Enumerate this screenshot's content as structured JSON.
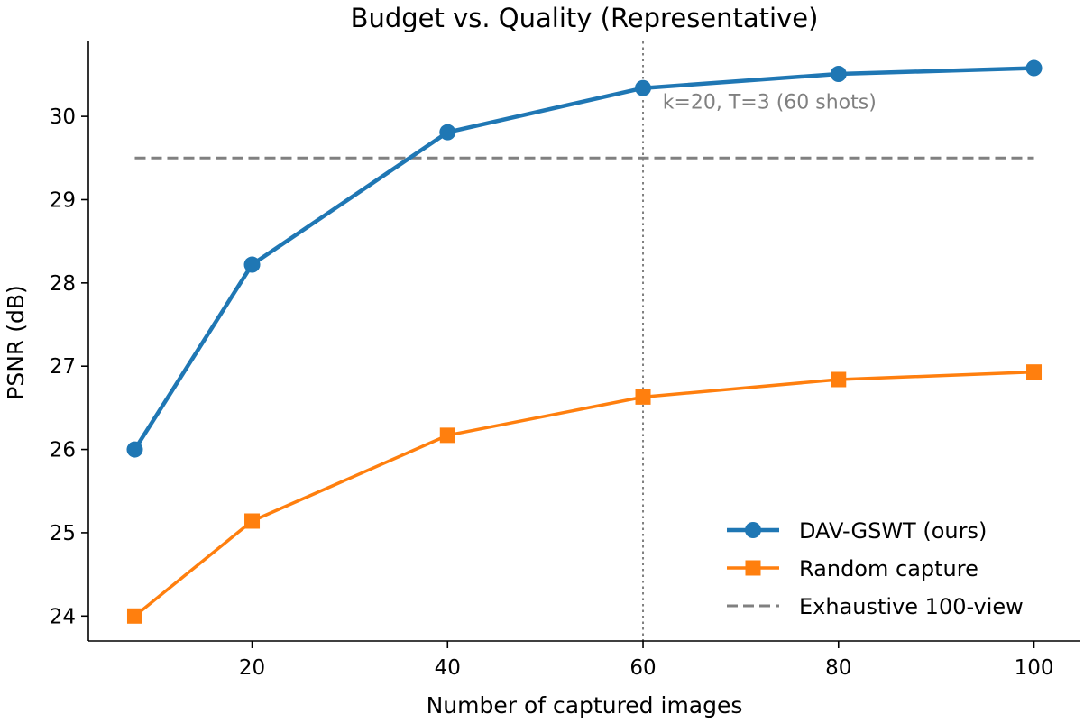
{
  "chart_data": {
    "type": "line",
    "title": "Budget vs. Quality (Representative)",
    "xlabel": "Number of captured images",
    "ylabel": "PSNR (dB)",
    "xlim": [
      3.25,
      104.75
    ],
    "ylim": [
      23.7,
      30.9
    ],
    "xticks": [
      20,
      40,
      60,
      80,
      100
    ],
    "yticks": [
      24,
      25,
      26,
      27,
      28,
      29,
      30
    ],
    "grid": false,
    "legend_position": "bottom-right",
    "x": [
      8,
      20,
      40,
      60,
      80,
      100
    ],
    "series": [
      {
        "name": "DAV-GSWT (ours)",
        "values": [
          26.0,
          28.22,
          29.81,
          30.34,
          30.51,
          30.58
        ],
        "color": "#1f77b4",
        "marker": "circle",
        "line_style": "solid"
      },
      {
        "name": "Random capture",
        "values": [
          24.0,
          25.14,
          26.17,
          26.63,
          26.84,
          26.93
        ],
        "color": "#ff7f0e",
        "marker": "square",
        "line_style": "solid"
      }
    ],
    "reference_line": {
      "name": "Exhaustive 100-view",
      "y": 29.5,
      "x_range": [
        8,
        100
      ],
      "color": "#808080",
      "line_style": "dashed"
    },
    "vertical_marker": {
      "x": 60,
      "color": "#808080",
      "line_style": "dotted"
    },
    "annotation": {
      "text": "k=20, T=3 (60 shots)",
      "x": 62,
      "y": 30.18,
      "color": "#808080"
    }
  }
}
